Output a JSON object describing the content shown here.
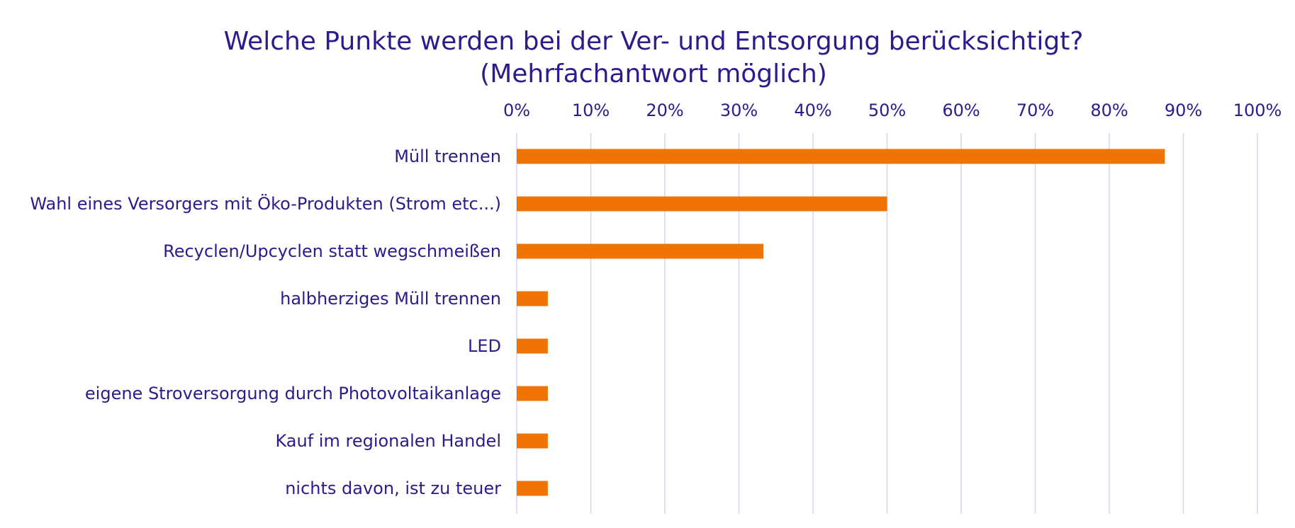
{
  "colors": {
    "text": "#2e1a8a",
    "bar": "#f07306",
    "grid": "#d6d3f0",
    "background": "#ffffff"
  },
  "chart_data": {
    "type": "bar",
    "orientation": "horizontal",
    "title": "Welche Punkte werden bei der Ver- und Entsorgung berücksichtigt?",
    "subtitle": "(Mehrfachantwort möglich)",
    "xlabel": "",
    "ylabel": "",
    "xlim": [
      0,
      100
    ],
    "unit": "%",
    "ticks": [
      "0%",
      "10%",
      "20%",
      "30%",
      "40%",
      "50%",
      "60%",
      "70%",
      "80%",
      "90%",
      "100%"
    ],
    "tick_values": [
      0,
      10,
      20,
      30,
      40,
      50,
      60,
      70,
      80,
      90,
      100
    ],
    "x_axis_position": "top",
    "grid": true,
    "legend": "none",
    "categories": [
      "Müll trennen",
      "Wahl eines Versorgers mit Öko-Produkten (Strom etc...)",
      "Recyclen/Upcyclen statt wegschmeißen",
      "halbherziges Müll trennen",
      "LED",
      "eigene Stroversorgung durch Photovoltaikanlage",
      "Kauf im regionalen Handel",
      "nichts davon, ist zu teuer"
    ],
    "values": [
      87.5,
      50,
      33.3,
      4.2,
      4.2,
      4.2,
      4.2,
      4.2
    ]
  }
}
